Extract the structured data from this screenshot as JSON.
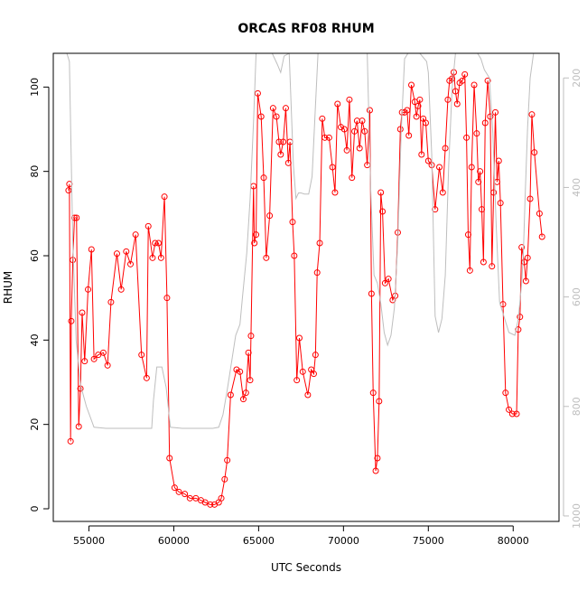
{
  "chart_data": {
    "type": "line",
    "title": "ORCAS RF08 RHUM",
    "xlabel": "UTC Seconds",
    "ylabel": "RHUM",
    "xlim": [
      52900,
      82700
    ],
    "ylim": [
      -3,
      108
    ],
    "y2lim": [
      1010,
      155
    ],
    "x_ticks": [
      55000,
      60000,
      65000,
      70000,
      75000,
      80000
    ],
    "y_ticks": [
      0,
      20,
      40,
      60,
      80,
      100
    ],
    "y2_ticks": [
      200,
      400,
      600,
      800,
      1000
    ],
    "colors": {
      "primary": "#ff0000",
      "secondary": "#bebebe",
      "axis": "#000000"
    },
    "series": [
      {
        "role": "primary",
        "style": "line+circle-markers",
        "points": [
          [
            53800,
            75.5
          ],
          [
            53850,
            77
          ],
          [
            53920,
            16
          ],
          [
            53960,
            44.5
          ],
          [
            54050,
            59
          ],
          [
            54150,
            69
          ],
          [
            54270,
            69
          ],
          [
            54400,
            19.5
          ],
          [
            54500,
            28.5
          ],
          [
            54600,
            46.5
          ],
          [
            54750,
            35
          ],
          [
            54950,
            52
          ],
          [
            55150,
            61.5
          ],
          [
            55300,
            35.5
          ],
          [
            55550,
            36.5
          ],
          [
            55850,
            37
          ],
          [
            56100,
            34
          ],
          [
            56300,
            49
          ],
          [
            56650,
            60.5
          ],
          [
            56900,
            52
          ],
          [
            57200,
            61
          ],
          [
            57450,
            58
          ],
          [
            57750,
            65
          ],
          [
            58100,
            36.5
          ],
          [
            58400,
            31
          ],
          [
            58500,
            67
          ],
          [
            58750,
            59.5
          ],
          [
            58900,
            63
          ],
          [
            59100,
            63
          ],
          [
            59250,
            59.5
          ],
          [
            59450,
            74
          ],
          [
            59600,
            50
          ],
          [
            59750,
            12
          ],
          [
            60050,
            5
          ],
          [
            60300,
            4
          ],
          [
            60650,
            3.5
          ],
          [
            60950,
            2.5
          ],
          [
            61300,
            2.5
          ],
          [
            61600,
            2
          ],
          [
            61850,
            1.5
          ],
          [
            62150,
            1
          ],
          [
            62400,
            1
          ],
          [
            62650,
            1.5
          ],
          [
            62800,
            2.5
          ],
          [
            63000,
            7
          ],
          [
            63150,
            11.5
          ],
          [
            63350,
            27
          ],
          [
            63700,
            33
          ],
          [
            63900,
            32.5
          ],
          [
            64100,
            26
          ],
          [
            64250,
            27.5
          ],
          [
            64400,
            37
          ],
          [
            64500,
            30.5
          ],
          [
            64550,
            41
          ],
          [
            64700,
            76.5
          ],
          [
            64750,
            63
          ],
          [
            64850,
            65
          ],
          [
            64950,
            98.5
          ],
          [
            65150,
            93
          ],
          [
            65300,
            78.5
          ],
          [
            65450,
            59.5
          ],
          [
            65650,
            69.5
          ],
          [
            65850,
            95
          ],
          [
            66050,
            93
          ],
          [
            66200,
            87
          ],
          [
            66300,
            84
          ],
          [
            66450,
            87
          ],
          [
            66600,
            95
          ],
          [
            66750,
            82
          ],
          [
            66850,
            87
          ],
          [
            67000,
            68
          ],
          [
            67100,
            60
          ],
          [
            67250,
            30.5
          ],
          [
            67400,
            40.5
          ],
          [
            67600,
            32.5
          ],
          [
            67900,
            27
          ],
          [
            68100,
            33
          ],
          [
            68250,
            32
          ],
          [
            68350,
            36.5
          ],
          [
            68450,
            56
          ],
          [
            68600,
            63
          ],
          [
            68750,
            92.5
          ],
          [
            68900,
            88
          ],
          [
            69150,
            88
          ],
          [
            69350,
            81
          ],
          [
            69500,
            75
          ],
          [
            69650,
            96
          ],
          [
            69850,
            90.5
          ],
          [
            70050,
            90
          ],
          [
            70200,
            85
          ],
          [
            70350,
            97
          ],
          [
            70500,
            78.5
          ],
          [
            70650,
            89.5
          ],
          [
            70800,
            92
          ],
          [
            70950,
            85.5
          ],
          [
            71100,
            92
          ],
          [
            71250,
            89.5
          ],
          [
            71400,
            81.5
          ],
          [
            71550,
            94.5
          ],
          [
            71650,
            51
          ],
          [
            71750,
            27.5
          ],
          [
            71900,
            9
          ],
          [
            72000,
            12
          ],
          [
            72100,
            25.5
          ],
          [
            72200,
            75
          ],
          [
            72300,
            70.5
          ],
          [
            72450,
            53.5
          ],
          [
            72650,
            54.5
          ],
          [
            72900,
            49.5
          ],
          [
            73050,
            50.5
          ],
          [
            73200,
            65.5
          ],
          [
            73350,
            90
          ],
          [
            73450,
            94
          ],
          [
            73600,
            94
          ],
          [
            73750,
            94.5
          ],
          [
            73850,
            88.5
          ],
          [
            74000,
            100.5
          ],
          [
            74200,
            96.5
          ],
          [
            74300,
            93
          ],
          [
            74400,
            95.5
          ],
          [
            74500,
            97
          ],
          [
            74600,
            84
          ],
          [
            74700,
            92.5
          ],
          [
            74850,
            91.5
          ],
          [
            75000,
            82.5
          ],
          [
            75200,
            81.5
          ],
          [
            75400,
            71
          ],
          [
            75650,
            81
          ],
          [
            75850,
            75
          ],
          [
            76000,
            85.5
          ],
          [
            76150,
            97
          ],
          [
            76250,
            101.5
          ],
          [
            76400,
            102
          ],
          [
            76500,
            103.5
          ],
          [
            76600,
            99
          ],
          [
            76700,
            96
          ],
          [
            76850,
            101
          ],
          [
            77000,
            101.5
          ],
          [
            77150,
            103
          ],
          [
            77250,
            88
          ],
          [
            77350,
            65
          ],
          [
            77450,
            56.5
          ],
          [
            77550,
            81
          ],
          [
            77700,
            100.5
          ],
          [
            77850,
            89
          ],
          [
            77950,
            77.5
          ],
          [
            78050,
            80
          ],
          [
            78150,
            71
          ],
          [
            78250,
            58.5
          ],
          [
            78350,
            91.5
          ],
          [
            78500,
            101.5
          ],
          [
            78650,
            93
          ],
          [
            78750,
            57.5
          ],
          [
            78850,
            75
          ],
          [
            78950,
            94
          ],
          [
            79050,
            77.5
          ],
          [
            79150,
            82.5
          ],
          [
            79250,
            72.5
          ],
          [
            79400,
            48.5
          ],
          [
            79550,
            27.5
          ],
          [
            79750,
            23.5
          ],
          [
            79950,
            22.5
          ],
          [
            80200,
            22.5
          ],
          [
            80300,
            42.5
          ],
          [
            80400,
            45.5
          ],
          [
            80500,
            62
          ],
          [
            80650,
            58.5
          ],
          [
            80750,
            54
          ],
          [
            80850,
            59.5
          ],
          [
            81000,
            73.5
          ],
          [
            81100,
            93.5
          ],
          [
            81250,
            84.5
          ],
          [
            81550,
            70
          ],
          [
            81700,
            64.5
          ]
        ]
      },
      {
        "role": "secondary",
        "style": "line",
        "points": [
          [
            53700,
            155
          ],
          [
            53850,
            170
          ],
          [
            54050,
            500
          ],
          [
            54250,
            680
          ],
          [
            54500,
            760
          ],
          [
            54850,
            800
          ],
          [
            55300,
            838
          ],
          [
            56000,
            840
          ],
          [
            57000,
            840
          ],
          [
            58000,
            840
          ],
          [
            58700,
            840
          ],
          [
            58800,
            790
          ],
          [
            59000,
            728
          ],
          [
            59300,
            728
          ],
          [
            59550,
            765
          ],
          [
            59800,
            838
          ],
          [
            60500,
            840
          ],
          [
            61500,
            840
          ],
          [
            62300,
            840
          ],
          [
            62650,
            838
          ],
          [
            62900,
            815
          ],
          [
            63150,
            770
          ],
          [
            63400,
            720
          ],
          [
            63650,
            670
          ],
          [
            63900,
            650
          ],
          [
            64050,
            600
          ],
          [
            64300,
            520
          ],
          [
            64500,
            420
          ],
          [
            64700,
            280
          ],
          [
            64850,
            155
          ],
          [
            65200,
            155
          ],
          [
            65550,
            155
          ],
          [
            65800,
            155
          ],
          [
            66100,
            175
          ],
          [
            66300,
            190
          ],
          [
            66500,
            160
          ],
          [
            66800,
            155
          ],
          [
            67050,
            360
          ],
          [
            67200,
            420
          ],
          [
            67350,
            410
          ],
          [
            67500,
            410
          ],
          [
            67700,
            412
          ],
          [
            67950,
            412
          ],
          [
            68150,
            380
          ],
          [
            68350,
            250
          ],
          [
            68500,
            155
          ],
          [
            69000,
            155
          ],
          [
            70000,
            155
          ],
          [
            71000,
            155
          ],
          [
            71400,
            155
          ],
          [
            71600,
            400
          ],
          [
            71800,
            560
          ],
          [
            72000,
            575
          ],
          [
            72200,
            612
          ],
          [
            72400,
            665
          ],
          [
            72600,
            688
          ],
          [
            72800,
            670
          ],
          [
            73000,
            620
          ],
          [
            73200,
            500
          ],
          [
            73400,
            300
          ],
          [
            73600,
            165
          ],
          [
            73800,
            155
          ],
          [
            74500,
            155
          ],
          [
            74900,
            170
          ],
          [
            75000,
            190
          ],
          [
            75200,
            340
          ],
          [
            75400,
            635
          ],
          [
            75600,
            665
          ],
          [
            75800,
            640
          ],
          [
            76000,
            560
          ],
          [
            76200,
            360
          ],
          [
            76400,
            220
          ],
          [
            76600,
            155
          ],
          [
            77400,
            155
          ],
          [
            77700,
            155
          ],
          [
            77900,
            155
          ],
          [
            78100,
            165
          ],
          [
            78300,
            185
          ],
          [
            78600,
            200
          ],
          [
            78800,
            300
          ],
          [
            79000,
            470
          ],
          [
            79200,
            610
          ],
          [
            79500,
            640
          ],
          [
            79750,
            665
          ],
          [
            80100,
            670
          ],
          [
            80300,
            640
          ],
          [
            80500,
            575
          ],
          [
            80600,
            520
          ],
          [
            80700,
            420
          ],
          [
            80850,
            290
          ],
          [
            81000,
            200
          ],
          [
            81200,
            155
          ],
          [
            81600,
            155
          ]
        ]
      }
    ]
  }
}
